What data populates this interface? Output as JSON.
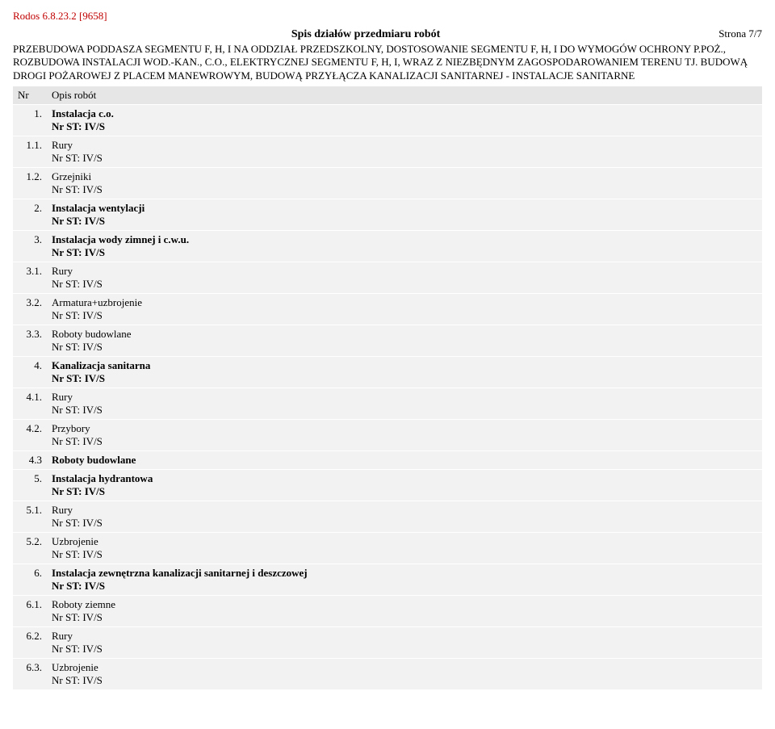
{
  "header_ref": "Rodos 6.8.23.2 [9658]",
  "title": "Spis działów przedmiaru robót",
  "page_label": "Strona 7/7",
  "intro_text": "PRZEBUDOWA PODDASZA SEGMENTU F, H, I NA ODDZIAŁ PRZEDSZKOLNY, DOSTOSOWANIE SEGMENTU F, H, I DO WYMOGÓW OCHRONY P.POŻ., ROZBUDOWA INSTALACJI WOD.-KAN., C.O., ELEKTRYCZNEJ SEGMENTU F, H, I, WRAZ Z NIEZBĘDNYM ZAGOSPODAROWANIEM TERENU TJ. BUDOWĄ DROGI POŻAROWEJ Z PLACEM MANEWROWYM, BUDOWĄ PRZYŁĄCZA KANALIZACJI SANITARNEJ - INSTALACJE SANITARNE",
  "columns": {
    "nr": "Nr",
    "opis": "Opis robót"
  },
  "st_label": "Nr ST: IV/S",
  "rows": [
    {
      "nr": "1.",
      "title": "Instalacja c.o.",
      "bold": true,
      "show_st": true
    },
    {
      "nr": "1.1.",
      "title": "Rury",
      "bold": false,
      "show_st": true
    },
    {
      "nr": "1.2.",
      "title": "Grzejniki",
      "bold": false,
      "show_st": true
    },
    {
      "nr": "2.",
      "title": "Instalacja wentylacji",
      "bold": true,
      "show_st": true
    },
    {
      "nr": "3.",
      "title": "Instalacja wody zimnej i c.w.u.",
      "bold": true,
      "show_st": true
    },
    {
      "nr": "3.1.",
      "title": "Rury",
      "bold": false,
      "show_st": true
    },
    {
      "nr": "3.2.",
      "title": "Armatura+uzbrojenie",
      "bold": false,
      "show_st": true
    },
    {
      "nr": "3.3.",
      "title": "Roboty budowlane",
      "bold": false,
      "show_st": true
    },
    {
      "nr": "4.",
      "title": "Kanalizacja sanitarna",
      "bold": true,
      "show_st": true
    },
    {
      "nr": "4.1.",
      "title": "Rury",
      "bold": false,
      "show_st": true
    },
    {
      "nr": "4.2.",
      "title": "Przybory",
      "bold": false,
      "show_st": true
    },
    {
      "nr": "4.3",
      "title": "Roboty budowlane",
      "bold": true,
      "show_st": false
    },
    {
      "nr": "5.",
      "title": "Instalacja hydrantowa",
      "bold": true,
      "show_st": true
    },
    {
      "nr": "5.1.",
      "title": "Rury",
      "bold": false,
      "show_st": true
    },
    {
      "nr": "5.2.",
      "title": "Uzbrojenie",
      "bold": false,
      "show_st": true
    },
    {
      "nr": "6.",
      "title": "Instalacja zewnętrzna kanalizacji sanitarnej i deszczowej",
      "bold": true,
      "show_st": true
    },
    {
      "nr": "6.1.",
      "title": "Roboty ziemne",
      "bold": false,
      "show_st": true
    },
    {
      "nr": "6.2.",
      "title": "Rury",
      "bold": false,
      "show_st": true
    },
    {
      "nr": "6.3.",
      "title": "Uzbrojenie",
      "bold": false,
      "show_st": true
    }
  ]
}
